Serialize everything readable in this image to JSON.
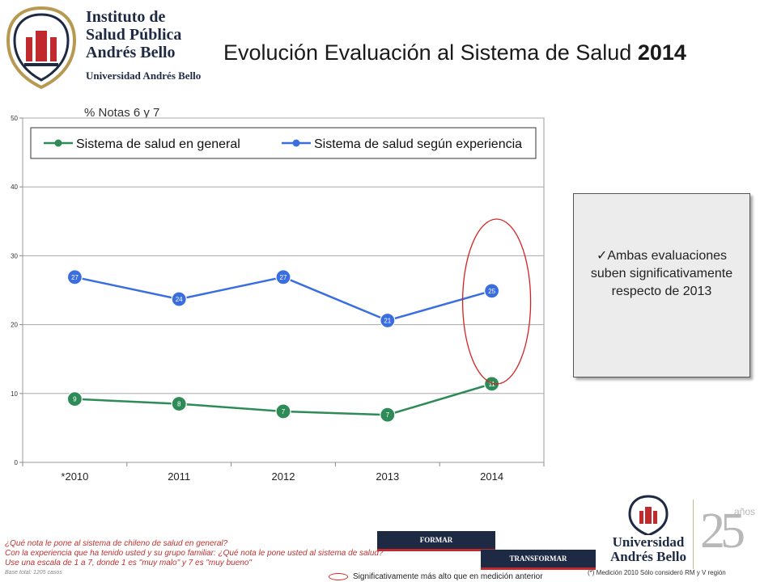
{
  "header": {
    "institution_name": [
      "Instituto de",
      "Salud Pública",
      "Andrés Bello"
    ],
    "university": "Universidad Andrés Bello",
    "title_main": "Evolución Evaluación al Sistema de Salud",
    "title_year": "2014"
  },
  "chart_note": "% Notas 6 y 7",
  "colors": {
    "green": "#2e8b57",
    "blue": "#3a6ee0",
    "oval": "#d22222",
    "navy": "#1e2a44",
    "red": "#c0292d"
  },
  "chart_data": {
    "type": "line",
    "categories": [
      "*2010",
      "2011",
      "2012",
      "2013",
      "2014"
    ],
    "ylim": [
      0,
      50
    ],
    "yticks": [
      0,
      10,
      20,
      30,
      40,
      50
    ],
    "grid": true,
    "legend": "top",
    "series": [
      {
        "name": "Sistema de salud en general",
        "color": "#2e8b57",
        "values": [
          9.2,
          8.5,
          7.4,
          6.9,
          11.4
        ],
        "labels": [
          "9",
          "8",
          "7",
          "7",
          "11"
        ]
      },
      {
        "name": "Sistema de salud según experiencia",
        "color": "#3a6ee0",
        "values": [
          26.9,
          23.7,
          26.9,
          20.6,
          24.9
        ],
        "labels": [
          "27",
          "24",
          "27",
          "21",
          "25"
        ]
      }
    ]
  },
  "callout": {
    "check": "✓",
    "text": "Ambas evaluaciones suben significativamente respecto de 2013"
  },
  "footer": {
    "questions": [
      "¿Qué nota le pone al sistema de chileno de salud en general?",
      "Con la experiencia que ha tenido usted y su grupo familiar: ¿Qué nota le pone usted al sistema de salud?",
      "Use una escala de 1 a 7, donde 1 es \"muy malo\" y 7 es \"muy bueno\""
    ],
    "base": "Base total: 1205 casos",
    "banner_formar": "FORMAR",
    "banner_transformar": "TRANSFORMAR",
    "legend_note": "Significativamente más alto que en medición anterior",
    "footnote": "(*) Medición 2010 Sólo consideró RM y V región",
    "bottom_university": [
      "Universidad",
      "Andrés Bello"
    ],
    "anniv_number": "25",
    "anniv_label": "años"
  }
}
